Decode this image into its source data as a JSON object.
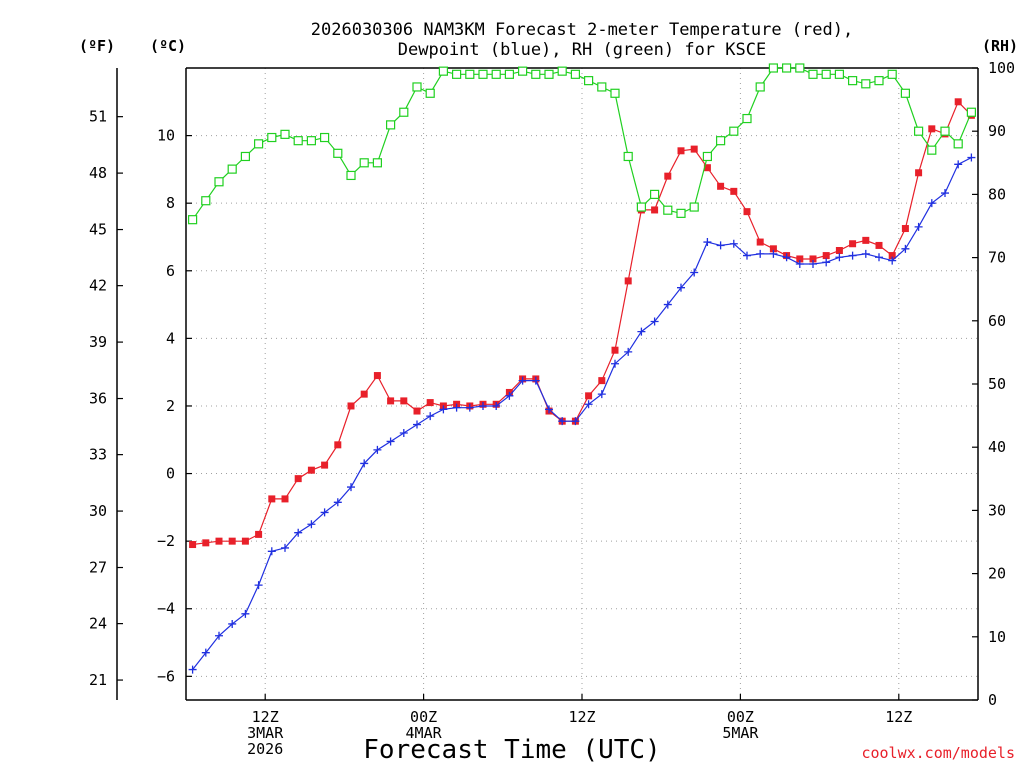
{
  "chart_data": {
    "type": "line",
    "title_line1": "2026030306 NAM3KM Forecast 2-meter Temperature (red),",
    "title_line2": "Dewpoint (blue), RH (green) for KSCE",
    "xlabel": "Forecast Time (UTC)",
    "credit": "coolwx.com/models",
    "left_unit_f": "(ºF)",
    "left_unit_c": "(ºC)",
    "right_unit": "(RH)",
    "ylim_c": [
      -6.7,
      12.0
    ],
    "ylim_rh": [
      0,
      100
    ],
    "x_range_hours": [
      0,
      60
    ],
    "f_ticks": [
      {
        "label": "21",
        "c": -6.11
      },
      {
        "label": "24",
        "c": -4.44
      },
      {
        "label": "27",
        "c": -2.78
      },
      {
        "label": "30",
        "c": -1.11
      },
      {
        "label": "33",
        "c": 0.56
      },
      {
        "label": "36",
        "c": 2.22
      },
      {
        "label": "39",
        "c": 3.89
      },
      {
        "label": "42",
        "c": 5.56
      },
      {
        "label": "45",
        "c": 7.22
      },
      {
        "label": "48",
        "c": 8.89
      },
      {
        "label": "51",
        "c": 10.56
      }
    ],
    "c_ticks": [
      {
        "label": "−6",
        "v": -6
      },
      {
        "label": "−4",
        "v": -4
      },
      {
        "label": "−2",
        "v": -2
      },
      {
        "label": "0",
        "v": 0
      },
      {
        "label": "2",
        "v": 2
      },
      {
        "label": "4",
        "v": 4
      },
      {
        "label": "6",
        "v": 6
      },
      {
        "label": "8",
        "v": 8
      },
      {
        "label": "10",
        "v": 10
      }
    ],
    "rh_ticks": [
      {
        "label": "0",
        "v": 0
      },
      {
        "label": "10",
        "v": 10
      },
      {
        "label": "20",
        "v": 20
      },
      {
        "label": "30",
        "v": 30
      },
      {
        "label": "40",
        "v": 40
      },
      {
        "label": "50",
        "v": 50
      },
      {
        "label": "60",
        "v": 60
      },
      {
        "label": "70",
        "v": 70
      },
      {
        "label": "80",
        "v": 80
      },
      {
        "label": "90",
        "v": 90
      },
      {
        "label": "100",
        "v": 100
      }
    ],
    "x_ticks": [
      {
        "h": 6,
        "lines": [
          "12Z",
          "3MAR",
          "2026"
        ]
      },
      {
        "h": 18,
        "lines": [
          "00Z",
          "4MAR"
        ]
      },
      {
        "h": 30,
        "lines": [
          "12Z"
        ]
      },
      {
        "h": 42,
        "lines": [
          "00Z",
          "5MAR"
        ]
      },
      {
        "h": 54,
        "lines": [
          "12Z"
        ]
      }
    ],
    "colors": {
      "temperature": "#e8202a",
      "dewpoint": "#2030e0",
      "rh": "#20d020",
      "grid": "#a0a0a0",
      "axis": "#000000"
    },
    "series": [
      {
        "name": "2-meter Temperature (°C)",
        "axis": "c",
        "marker": "square-filled",
        "values": [
          -2.1,
          -2.05,
          -2.0,
          -2.0,
          -2.0,
          -1.8,
          -0.75,
          -0.75,
          -0.15,
          0.1,
          0.25,
          0.85,
          2.0,
          2.35,
          2.9,
          2.15,
          2.15,
          1.85,
          2.1,
          2.0,
          2.05,
          2.0,
          2.05,
          2.05,
          2.4,
          2.8,
          2.8,
          1.85,
          1.55,
          1.55,
          2.3,
          2.75,
          3.65,
          5.7,
          7.8,
          7.8,
          8.8,
          9.55,
          9.6,
          9.05,
          8.5,
          8.35,
          7.75,
          6.85,
          6.65,
          6.45,
          6.35,
          6.35,
          6.45,
          6.6,
          6.8,
          6.9,
          6.75,
          6.45,
          7.25,
          8.9,
          10.2,
          10.05,
          11.0,
          10.6
        ]
      },
      {
        "name": "Dewpoint (°C)",
        "axis": "c",
        "marker": "plus",
        "values": [
          -5.8,
          -5.3,
          -4.8,
          -4.45,
          -4.15,
          -3.3,
          -2.3,
          -2.2,
          -1.75,
          -1.5,
          -1.15,
          -0.85,
          -0.4,
          0.3,
          0.7,
          0.95,
          1.2,
          1.45,
          1.7,
          1.9,
          1.95,
          1.95,
          2.0,
          2.0,
          2.3,
          2.75,
          2.75,
          1.9,
          1.55,
          1.55,
          2.05,
          2.35,
          3.25,
          3.6,
          4.2,
          4.5,
          5.0,
          5.5,
          5.95,
          6.85,
          6.75,
          6.8,
          6.45,
          6.5,
          6.5,
          6.4,
          6.2,
          6.2,
          6.25,
          6.4,
          6.45,
          6.5,
          6.4,
          6.3,
          6.65,
          7.3,
          8.0,
          8.3,
          9.15,
          9.35
        ]
      },
      {
        "name": "RH (%)",
        "axis": "rh",
        "marker": "square-open",
        "values": [
          76,
          79,
          82,
          84,
          86,
          88,
          89,
          89.5,
          88.5,
          88.5,
          89,
          86.5,
          83,
          85,
          85,
          91,
          93,
          97,
          96,
          99.5,
          99,
          99,
          99,
          99,
          99,
          99.5,
          99,
          99,
          99.5,
          99,
          98,
          97,
          96,
          86,
          78,
          80,
          77.5,
          77,
          78,
          86,
          88.5,
          90,
          92,
          97,
          100,
          100,
          100,
          99,
          99,
          99,
          98,
          97.5,
          98,
          99,
          96,
          90,
          87,
          90,
          88,
          93
        ]
      }
    ]
  }
}
